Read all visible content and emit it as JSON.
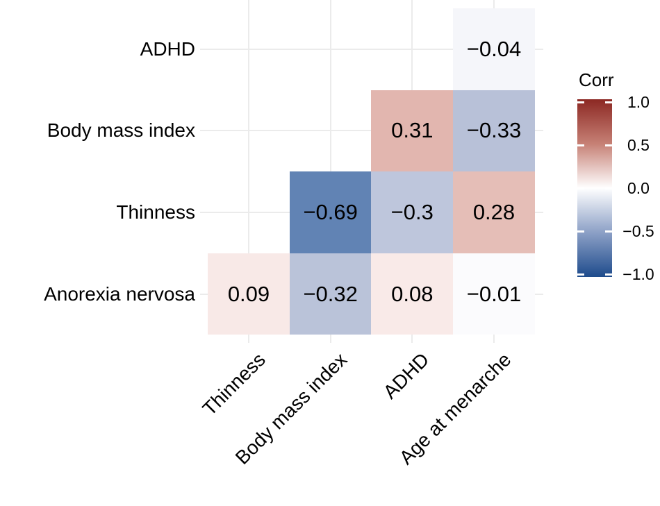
{
  "chart_data": {
    "type": "heatmap",
    "subtype": "correlation-matrix-lower-triangle",
    "title": "",
    "x_categories": [
      "Thinness",
      "Body mass index",
      "ADHD",
      "Age at menarche"
    ],
    "y_categories": [
      "ADHD",
      "Body mass index",
      "Thinness",
      "Anorexia nervosa"
    ],
    "cells": [
      {
        "row": 0,
        "col": 3,
        "y": "ADHD",
        "x": "Age at menarche",
        "value": -0.04,
        "label": "−0.04",
        "color": "#f5f6fa"
      },
      {
        "row": 1,
        "col": 2,
        "y": "Body mass index",
        "x": "ADHD",
        "value": 0.31,
        "label": "0.31",
        "color": "#e2b6af"
      },
      {
        "row": 1,
        "col": 3,
        "y": "Body mass index",
        "x": "Age at menarche",
        "value": -0.33,
        "label": "−0.33",
        "color": "#b8c1d8"
      },
      {
        "row": 2,
        "col": 1,
        "y": "Thinness",
        "x": "Body mass index",
        "value": -0.69,
        "label": "−0.69",
        "color": "#6183b4"
      },
      {
        "row": 2,
        "col": 2,
        "y": "Thinness",
        "x": "ADHD",
        "value": -0.3,
        "label": "−0.3",
        "color": "#bec6dc"
      },
      {
        "row": 2,
        "col": 3,
        "y": "Thinness",
        "x": "Age at menarche",
        "value": 0.28,
        "label": "0.28",
        "color": "#e5beb7"
      },
      {
        "row": 3,
        "col": 0,
        "y": "Anorexia nervosa",
        "x": "Thinness",
        "value": 0.09,
        "label": "0.09",
        "color": "#f8e9e7"
      },
      {
        "row": 3,
        "col": 1,
        "y": "Anorexia nervosa",
        "x": "Body mass index",
        "value": -0.32,
        "label": "−0.32",
        "color": "#bac3d9"
      },
      {
        "row": 3,
        "col": 2,
        "y": "Anorexia nervosa",
        "x": "ADHD",
        "value": 0.08,
        "label": "0.08",
        "color": "#f9eae8"
      },
      {
        "row": 3,
        "col": 3,
        "y": "Anorexia nervosa",
        "x": "Age at menarche",
        "value": -0.01,
        "label": "−0.01",
        "color": "#fbfbfd"
      }
    ],
    "legend": {
      "title": "Corr",
      "ticks": [
        {
          "label": "1.0",
          "value": 1.0
        },
        {
          "label": "0.5",
          "value": 0.5
        },
        {
          "label": "0.0",
          "value": 0.0
        },
        {
          "label": "−0.5",
          "value": -0.5
        },
        {
          "label": "−1.0",
          "value": -1.0
        }
      ],
      "range": [
        -1.0,
        1.0
      ],
      "gradient_stops": [
        {
          "value": 1.0,
          "color": "#8c2823"
        },
        {
          "value": 0.5,
          "color": "#c68075"
        },
        {
          "value": 0.0,
          "color": "#ffffff"
        },
        {
          "value": -0.5,
          "color": "#8ca0c6"
        },
        {
          "value": -1.0,
          "color": "#1e4b8c"
        }
      ]
    },
    "style": {
      "grid_color": "#ebebeb",
      "background": "#ffffff",
      "text_color": "#000000",
      "grid_on": true,
      "legend_position": "right",
      "x_label_angle_deg": 45
    }
  }
}
